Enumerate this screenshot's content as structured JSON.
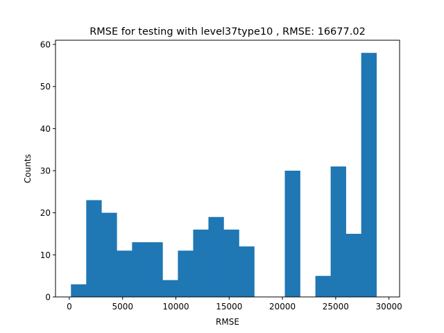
{
  "chart_data": {
    "type": "bar",
    "title": "RMSE for testing with level37type10 , RMSE: 16677.02",
    "xlabel": "RMSE",
    "ylabel": "Counts",
    "xlim": [
      -1300,
      31000
    ],
    "ylim": [
      0,
      61
    ],
    "xticks": [
      0,
      5000,
      10000,
      15000,
      20000,
      25000,
      30000
    ],
    "yticks": [
      0,
      10,
      20,
      30,
      40,
      50,
      60
    ],
    "grid": false,
    "bar_color": "#1f77b4",
    "bins": {
      "edges": [
        150,
        1584,
        3018,
        4452,
        5886,
        7320,
        8754,
        10188,
        11622,
        13056,
        14490,
        15924,
        17358,
        18792,
        20226,
        21660,
        23094,
        24528,
        25962,
        27396,
        28830
      ],
      "counts": [
        3,
        23,
        20,
        11,
        13,
        13,
        4,
        11,
        16,
        19,
        16,
        12,
        0,
        0,
        30,
        0,
        5,
        31,
        15,
        58
      ]
    }
  }
}
